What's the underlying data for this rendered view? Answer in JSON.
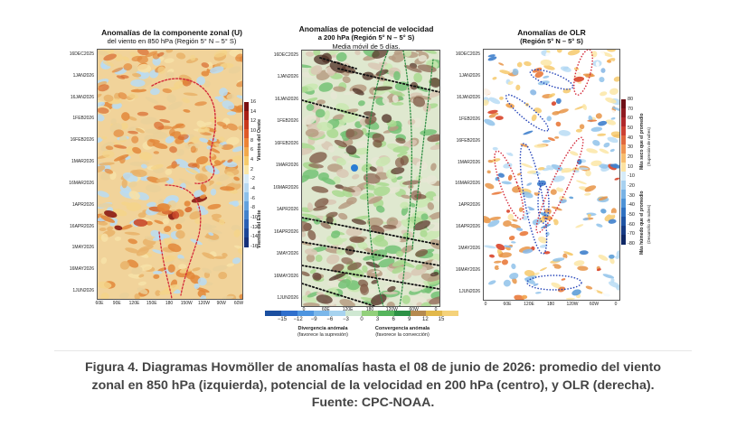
{
  "chart_data": [
    {
      "type": "heatmap",
      "title": "Anomalías de la componente zonal (U)",
      "subtitle": "del viento en 850 hPa (Región 5° N – 5° S)",
      "y_tick_labels": [
        "16DEC2025",
        "1JAN2026",
        "16JAN2026",
        "1FEB2026",
        "16FEB2026",
        "1MAR2026",
        "16MAR2026",
        "1APR2026",
        "16APR2026",
        "1MAY2026",
        "16MAY2026",
        "1JUN2026"
      ],
      "x_tick_labels": [
        "60E",
        "90E",
        "120E",
        "150E",
        "180",
        "150W",
        "120W",
        "90W",
        "60W"
      ],
      "colorbar_ticks": [
        "16",
        "14",
        "12",
        "10",
        "8",
        "6",
        "4",
        "2",
        "-2",
        "-4",
        "-6",
        "-8",
        "-10",
        "-12",
        "-14",
        "-16"
      ],
      "colorbar_upper_label": "Vientos del Oeste",
      "colorbar_lower_label": "Vientos del Este",
      "colorbar_range": [
        -16,
        16
      ]
    },
    {
      "type": "heatmap",
      "title": "Anomalías de potencial de velocidad",
      "subtitle": "a 200 hPa (Región 5° N – 5° S)",
      "note": "Media móvil de 5 días.",
      "y_tick_labels": [
        "16DEC2025",
        "1JAN2026",
        "16JAN2026",
        "1FEB2026",
        "16FEB2026",
        "1MAR2026",
        "16MAR2026",
        "1APR2026",
        "16APR2026",
        "1MAY2026",
        "16MAY2026",
        "1JUN2026"
      ],
      "x_tick_labels": [
        "0",
        "60E",
        "120E",
        "180",
        "120W",
        "60W",
        "0"
      ],
      "colorbar_ticks": [
        "−15",
        "−12",
        "−9",
        "−6",
        "−3",
        "0",
        "3",
        "6",
        "9",
        "12",
        "15"
      ],
      "colorbar_range": [
        -15,
        15
      ],
      "legend_left_title": "Divergencia anómala",
      "legend_left_sub": "(favorece la supresión)",
      "legend_right_title": "Convergencia anómala",
      "legend_right_sub": "(favorece la convección)"
    },
    {
      "type": "heatmap",
      "title": "Anomalías de OLR",
      "subtitle": "(Región 5° N – 5° S)",
      "y_tick_labels": [
        "16DEC2025",
        "1JAN2026",
        "16JAN2026",
        "1FEB2026",
        "16FEB2026",
        "1MAR2026",
        "16MAR2026",
        "1APR2026",
        "16APR2026",
        "1MAY2026",
        "16MAY2026",
        "1JUN2026"
      ],
      "x_tick_labels": [
        "0",
        "60E",
        "120E",
        "180",
        "120W",
        "60W",
        "0"
      ],
      "colorbar_ticks": [
        "80",
        "70",
        "60",
        "50",
        "40",
        "30",
        "20",
        "10",
        "-10",
        "-20",
        "-30",
        "-40",
        "-50",
        "-60",
        "-70",
        "-80"
      ],
      "colorbar_range": [
        -80,
        80
      ],
      "colorbar_upper_label": "Más seco que el promedio",
      "colorbar_upper_sub": "(Supresión de nubes)",
      "colorbar_lower_label": "Más húmedo que el promedio",
      "colorbar_lower_sub": "(Desarrollo de nubes)"
    }
  ],
  "caption": "Figura 4. Diagramas Hovmöller de anomalías hasta el 08 de junio de 2026: promedio del viento zonal en 850 hPa (izquierda), potencial de la velocidad en 200 hPa (centro), y OLR (derecha). Fuente: CPC-NOAA.",
  "colors": {
    "warm_dark": "#8b1a12",
    "warm_mid": "#e3873a",
    "warm_light": "#f4d48a",
    "neutral": "#ffffff",
    "cool_light": "#b9dcf5",
    "cool_mid": "#5d9fd8",
    "cool_dark": "#1f3f9a",
    "green_light": "#c9e8b0",
    "green_mid": "#74c276",
    "green_dark": "#2a8f4c",
    "brown_light": "#d9c7b4",
    "brown_dark": "#5b3a2c",
    "contour_red": "#d42a3a",
    "contour_blue": "#2443b8",
    "contour_green": "#2f8f44",
    "dotted_black": "#111111"
  }
}
